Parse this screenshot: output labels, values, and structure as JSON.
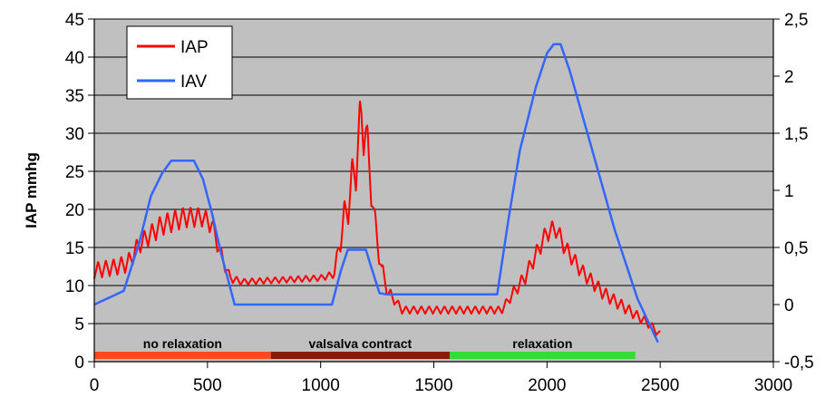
{
  "chart_data": {
    "type": "line",
    "xlabel": "",
    "ylabel": "IAP mmhg",
    "y2label": "",
    "xlim": [
      0,
      3000
    ],
    "ylim": [
      0,
      45
    ],
    "y2lim": [
      -0.5,
      2.5
    ],
    "x_ticks": [
      0,
      500,
      1000,
      1500,
      2000,
      2500,
      3000
    ],
    "y_ticks": [
      0,
      5,
      10,
      15,
      20,
      25,
      30,
      35,
      40,
      45
    ],
    "y2_ticks": [
      {
        "value": -0.5,
        "label": "-0,5"
      },
      {
        "value": 0,
        "label": "0"
      },
      {
        "value": 0.5,
        "label": "0,5"
      },
      {
        "value": 1,
        "label": "1"
      },
      {
        "value": 1.5,
        "label": "1,5"
      },
      {
        "value": 2,
        "label": "2"
      },
      {
        "value": 2.5,
        "label": "2,5"
      }
    ],
    "grid": "horizontal",
    "plot_background": "#c0c0c0",
    "legend": {
      "placement": "top-left"
    },
    "series": [
      {
        "name": "IAP",
        "axis": "left",
        "color": "#ff0000",
        "oscillation": {
          "period": 34
        },
        "x": [
          0,
          100,
          150,
          200,
          300,
          400,
          480,
          520,
          560,
          600,
          650,
          1000,
          1060,
          1080,
          1100,
          1130,
          1160,
          1180,
          1200,
          1220,
          1240,
          1270,
          1300,
          1330,
          1360,
          1800,
          1850,
          1900,
          1950,
          2000,
          2040,
          2080,
          2150,
          2250,
          2350,
          2450,
          2500
        ],
        "y": [
          12,
          12.5,
          13,
          15.5,
          18,
          19,
          19,
          18,
          14,
          11,
          10.5,
          11,
          11.5,
          15,
          18,
          22,
          27,
          32,
          30,
          24,
          18,
          12,
          9,
          8,
          6.8,
          6.8,
          9,
          11,
          14,
          17,
          17.5,
          15,
          12,
          9,
          7,
          5,
          3.5
        ],
        "amplitude": [
          2.2,
          2.2,
          2.5,
          2.5,
          2.8,
          2.8,
          2.5,
          2.5,
          2.2,
          1.2,
          0.8,
          0.8,
          1,
          2.5,
          5,
          6,
          8,
          8.5,
          7,
          5,
          4,
          2.5,
          1.8,
          1.2,
          1,
          1,
          1.5,
          2,
          2.2,
          2.5,
          2.5,
          2.2,
          2,
          1.8,
          1.5,
          1.2,
          1
        ]
      },
      {
        "name": "IAV",
        "axis": "right",
        "color": "#3366ff",
        "x": [
          0,
          130,
          200,
          250,
          300,
          340,
          440,
          480,
          520,
          560,
          620,
          1050,
          1090,
          1120,
          1200,
          1220,
          1260,
          1290,
          1780,
          1830,
          1880,
          1950,
          2000,
          2030,
          2060,
          2100,
          2200,
          2300,
          2400,
          2490
        ],
        "y": [
          0,
          0.12,
          0.55,
          0.95,
          1.15,
          1.26,
          1.26,
          1.1,
          0.8,
          0.45,
          0,
          0,
          0.3,
          0.48,
          0.48,
          0.35,
          0.1,
          0.09,
          0.09,
          0.75,
          1.35,
          1.9,
          2.2,
          2.28,
          2.28,
          2.05,
          1.35,
          0.65,
          0.05,
          -0.33
        ]
      }
    ],
    "phases": [
      {
        "label": "no relaxation",
        "start": 0,
        "end": 780,
        "color": "#ff4a1c"
      },
      {
        "label": "valsalva contract",
        "start": 780,
        "end": 1570,
        "color": "#8b1a0a"
      },
      {
        "label": "relaxation",
        "start": 1570,
        "end": 2390,
        "color": "#33dd33"
      }
    ]
  }
}
